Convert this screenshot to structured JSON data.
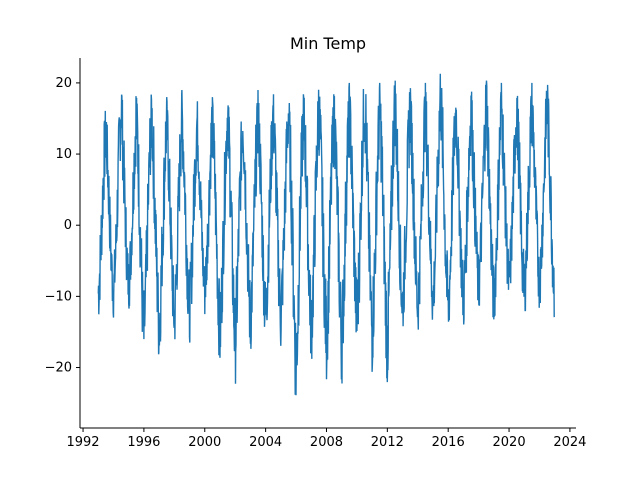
{
  "chart_data": {
    "type": "line",
    "title": "Min Temp",
    "xlabel": "",
    "ylabel": "",
    "x_ticks": [
      "1992",
      "1996",
      "2000",
      "2004",
      "2008",
      "2012",
      "2016",
      "2020",
      "2024"
    ],
    "y_ticks": [
      "20",
      "10",
      "0",
      "−10",
      "−20"
    ],
    "xlim": [
      1991.8,
      2024.4
    ],
    "ylim": [
      -28.5,
      23.5
    ],
    "grid": false,
    "legend": "none",
    "color": "#1f77b4",
    "series": [
      {
        "x": [
          1993.0,
          1993.5,
          1994.0,
          1994.5,
          1995.0,
          1995.5,
          1996.0,
          1996.5,
          1997.0,
          1997.5,
          1998.0,
          1998.5,
          1999.0,
          1999.5,
          2000.0,
          2000.5,
          2001.0,
          2001.5,
          2002.0,
          2002.5,
          2003.0,
          2003.5,
          2004.0,
          2004.5,
          2005.0,
          2005.5,
          2006.0,
          2006.5,
          2007.0,
          2007.5,
          2008.0,
          2008.5,
          2009.0,
          2009.5,
          2010.0,
          2010.5,
          2011.0,
          2011.5,
          2012.0,
          2012.5,
          2013.0,
          2013.5,
          2014.0,
          2014.5,
          2015.0,
          2015.5,
          2016.0,
          2016.5,
          2017.0,
          2017.5,
          2018.0,
          2018.5,
          2019.0,
          2019.5,
          2020.0,
          2020.5,
          2021.0,
          2021.5,
          2022.0,
          2022.5,
          2023.0
        ],
        "y_min": [
          -14,
          -5,
          -13,
          -3,
          -12,
          -4,
          -21,
          -3,
          -20,
          -4,
          -18,
          -4,
          -17,
          -3,
          -13,
          -3,
          -21,
          -2,
          -23,
          -3,
          -19,
          -2,
          -18,
          -2,
          -18,
          -2,
          -27,
          -2,
          -20,
          -3,
          -22,
          -2,
          -23,
          -2,
          -19,
          -2,
          -21,
          -3,
          -23,
          -3,
          -16,
          -2,
          -16,
          -2,
          -15,
          -2,
          -17,
          -1,
          -15,
          -3,
          -13,
          -2,
          -15,
          -2,
          -12,
          -2,
          -14,
          -1,
          -12,
          -2,
          -14
        ],
        "y_max": [
          4,
          17,
          1,
          21,
          2,
          19,
          1,
          19,
          2,
          18,
          1,
          19,
          2,
          18,
          2,
          18,
          1,
          19,
          2,
          18,
          2,
          19,
          2,
          19,
          2,
          19,
          2,
          19,
          2,
          20,
          2,
          19,
          2,
          20,
          2,
          22,
          2,
          20,
          2,
          21,
          2,
          20,
          2,
          20,
          2,
          22,
          3,
          19,
          2,
          20,
          3,
          21,
          2,
          20,
          2,
          20,
          3,
          20,
          3,
          21,
          3
        ]
      }
    ]
  }
}
